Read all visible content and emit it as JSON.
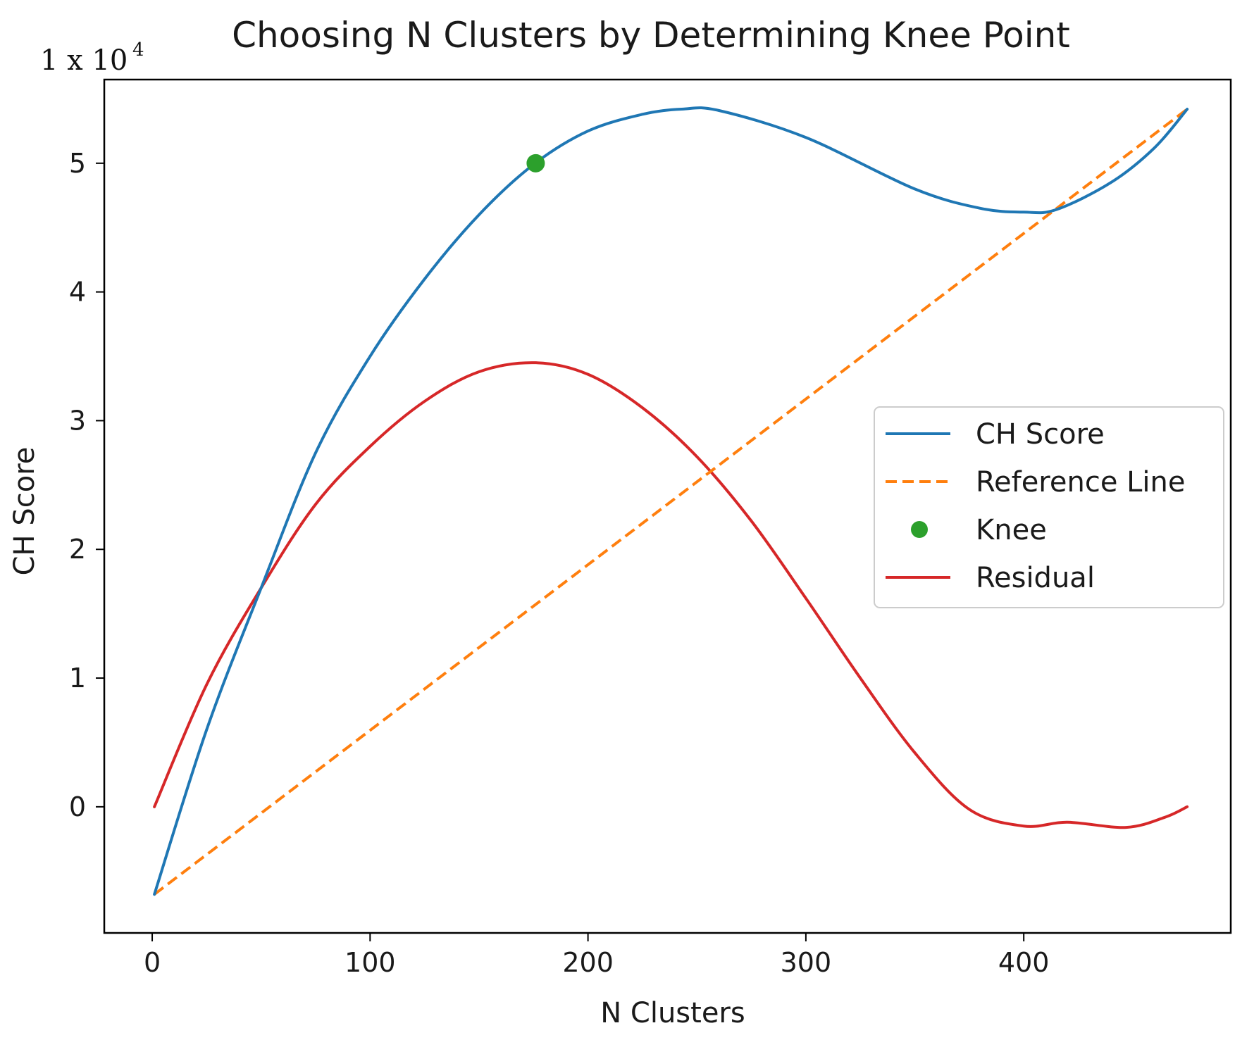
{
  "chart_data": {
    "type": "line",
    "title": "Choosing N Clusters by Determining Knee Point",
    "xlabel": "N Clusters",
    "ylabel": "CH Score",
    "y_multiplier": {
      "base": "1 x 10",
      "exponent": "4"
    },
    "xlim": [
      -22,
      495
    ],
    "ylim": [
      -0.98,
      5.65
    ],
    "x_ticks": [
      0,
      100,
      200,
      300,
      400
    ],
    "y_ticks": [
      0,
      1,
      2,
      3,
      4,
      5
    ],
    "x_tick_labels": [
      "0",
      "100",
      "200",
      "300",
      "400"
    ],
    "y_tick_labels": [
      "0",
      "1",
      "2",
      "3",
      "4",
      "5"
    ],
    "legend_position": "center-right",
    "series": [
      {
        "name": "CH Score",
        "style": "solid",
        "color": "#1f77b4",
        "x": [
          1,
          25,
          50,
          75,
          100,
          125,
          150,
          175,
          200,
          225,
          243,
          260,
          300,
          350,
          380,
          400,
          415,
          440,
          460,
          475
        ],
        "y": [
          -0.68,
          0.6,
          1.7,
          2.75,
          3.5,
          4.1,
          4.6,
          4.99,
          5.25,
          5.38,
          5.42,
          5.41,
          5.2,
          4.8,
          4.65,
          4.62,
          4.64,
          4.85,
          5.12,
          5.42
        ]
      },
      {
        "name": "Reference Line",
        "style": "dashed",
        "color": "#ff7f0e",
        "x": [
          1,
          475
        ],
        "y": [
          -0.68,
          5.42
        ]
      },
      {
        "name": "Knee",
        "style": "marker",
        "color": "#2ca02c",
        "x": [
          176
        ],
        "y": [
          5.0
        ]
      },
      {
        "name": "Residual",
        "style": "solid",
        "color": "#d62728",
        "x": [
          1,
          25,
          50,
          75,
          100,
          125,
          150,
          176,
          200,
          225,
          250,
          275,
          300,
          325,
          350,
          375,
          400,
          420,
          447,
          465,
          475
        ],
        "y": [
          0.0,
          0.95,
          1.7,
          2.35,
          2.8,
          3.15,
          3.38,
          3.45,
          3.36,
          3.1,
          2.72,
          2.22,
          1.62,
          1.0,
          0.42,
          -0.02,
          -0.15,
          -0.12,
          -0.16,
          -0.08,
          0.0
        ]
      }
    ]
  }
}
